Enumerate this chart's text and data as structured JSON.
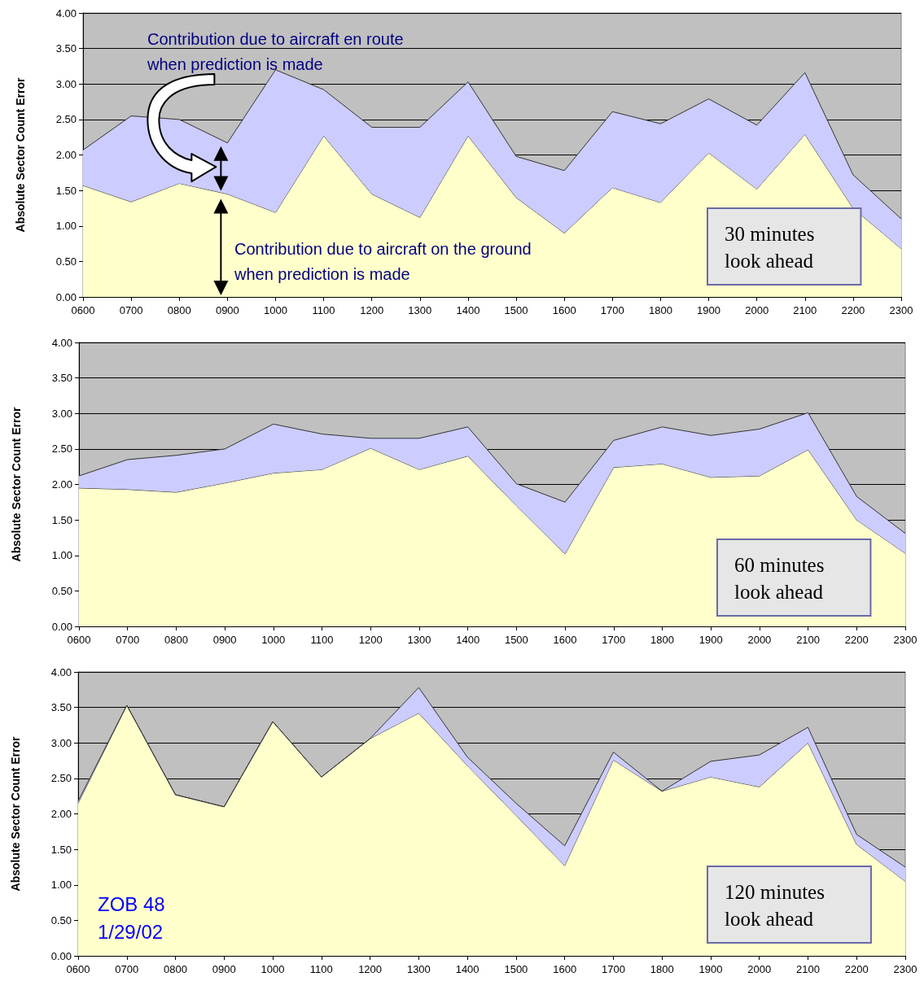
{
  "chart_data": [
    {
      "type": "area",
      "stacked": true,
      "ylabel": "Absolute Sector Count Error",
      "categories": [
        "0600",
        "0700",
        "0800",
        "0900",
        "1000",
        "1100",
        "1200",
        "1300",
        "1400",
        "1500",
        "1600",
        "1700",
        "1800",
        "1900",
        "2000",
        "2100",
        "2200",
        "2300"
      ],
      "series": [
        {
          "color": "#ffffcc",
          "values": [
            1.57,
            1.34,
            1.6,
            1.45,
            1.19,
            2.27,
            1.45,
            1.12,
            2.27,
            1.4,
            0.9,
            1.54,
            1.33,
            2.03,
            1.52,
            2.29,
            1.25,
            0.68
          ]
        },
        {
          "color": "#ccccff",
          "values": [
            0.5,
            1.21,
            0.9,
            0.72,
            2.01,
            0.65,
            0.94,
            1.27,
            0.76,
            0.58,
            0.88,
            1.07,
            1.11,
            0.76,
            0.9,
            0.87,
            0.47,
            0.42
          ]
        }
      ],
      "ylim": [
        0,
        4
      ],
      "yticks": [
        {
          "value": 0,
          "label": "0.00"
        },
        {
          "value": 0.5,
          "label": "0.50"
        },
        {
          "value": 1,
          "label": "1.00"
        },
        {
          "value": 1.5,
          "label": "1.50"
        },
        {
          "value": 2,
          "label": "2.00"
        },
        {
          "value": 2.5,
          "label": "2.50"
        },
        {
          "value": 3,
          "label": "3.00"
        },
        {
          "value": 3.5,
          "label": "3.50"
        },
        {
          "value": 4,
          "label": "4.00"
        }
      ],
      "grid": "y",
      "marker": "none",
      "annotations": [
        "Contribution due to aircraft en route\nwhen prediction is made",
        "Contribution due to aircraft on the ground\nwhen prediction is made",
        "30 minutes\nlook ahead"
      ]
    },
    {
      "type": "area",
      "stacked": true,
      "ylabel": "Absolute Sector Count Error",
      "categories": [
        "0600",
        "0700",
        "0800",
        "0900",
        "1000",
        "1100",
        "1200",
        "1300",
        "1400",
        "1500",
        "1600",
        "1700",
        "1800",
        "1900",
        "2000",
        "2100",
        "2200",
        "2300"
      ],
      "series": [
        {
          "color": "#ffffcc",
          "values": [
            1.95,
            1.93,
            1.89,
            2.02,
            2.16,
            2.21,
            2.51,
            2.21,
            2.4,
            1.7,
            1.02,
            2.24,
            2.29,
            2.1,
            2.12,
            2.49,
            1.5,
            1.03
          ]
        },
        {
          "color": "#ccccff",
          "values": [
            0.17,
            0.42,
            0.52,
            0.48,
            0.69,
            0.5,
            0.14,
            0.44,
            0.41,
            0.31,
            0.73,
            0.38,
            0.52,
            0.59,
            0.66,
            0.52,
            0.33,
            0.28
          ]
        }
      ],
      "ylim": [
        0,
        4
      ],
      "yticks": [
        {
          "value": 0,
          "label": "0.00"
        },
        {
          "value": 0.5,
          "label": "0.50"
        },
        {
          "value": 1,
          "label": "1.00"
        },
        {
          "value": 1.5,
          "label": "1.50"
        },
        {
          "value": 2,
          "label": "2.00"
        },
        {
          "value": 2.5,
          "label": "2.50"
        },
        {
          "value": 3,
          "label": "3.00"
        },
        {
          "value": 3.5,
          "label": "3.50"
        },
        {
          "value": 4,
          "label": "4.00"
        }
      ],
      "grid": "y",
      "marker": "none",
      "annotations": [
        "60 minutes\nlook ahead"
      ]
    },
    {
      "type": "area",
      "stacked": true,
      "ylabel": "Absolute Sector Count Error",
      "categories": [
        "0600",
        "0700",
        "0800",
        "0900",
        "1000",
        "1100",
        "1200",
        "1300",
        "1400",
        "1500",
        "1600",
        "1700",
        "1800",
        "1900",
        "2000",
        "2100",
        "2200",
        "2300"
      ],
      "series": [
        {
          "color": "#ffffcc",
          "values": [
            2.15,
            3.53,
            2.27,
            2.1,
            3.3,
            2.52,
            3.06,
            3.42,
            2.68,
            1.98,
            1.27,
            2.76,
            2.32,
            2.52,
            2.38,
            3.0,
            1.57,
            1.05
          ]
        },
        {
          "color": "#ccccff",
          "values": [
            0.03,
            0,
            0,
            0,
            0,
            0,
            0,
            0.36,
            0.12,
            0.17,
            0.28,
            0.11,
            0,
            0.22,
            0.45,
            0.22,
            0.14,
            0.2
          ]
        }
      ],
      "ylim": [
        0,
        4
      ],
      "yticks": [
        {
          "value": 0,
          "label": "0.00"
        },
        {
          "value": 0.5,
          "label": "0.50"
        },
        {
          "value": 1,
          "label": "1.00"
        },
        {
          "value": 1.5,
          "label": "1.50"
        },
        {
          "value": 2,
          "label": "2.00"
        },
        {
          "value": 2.5,
          "label": "2.50"
        },
        {
          "value": 3,
          "label": "3.00"
        },
        {
          "value": 3.5,
          "label": "3.50"
        },
        {
          "value": 4,
          "label": "4.00"
        }
      ],
      "grid": "y",
      "marker": "none",
      "annotations": [
        "120 minutes\nlook ahead",
        "ZOB 48\n1/29/02"
      ]
    }
  ]
}
